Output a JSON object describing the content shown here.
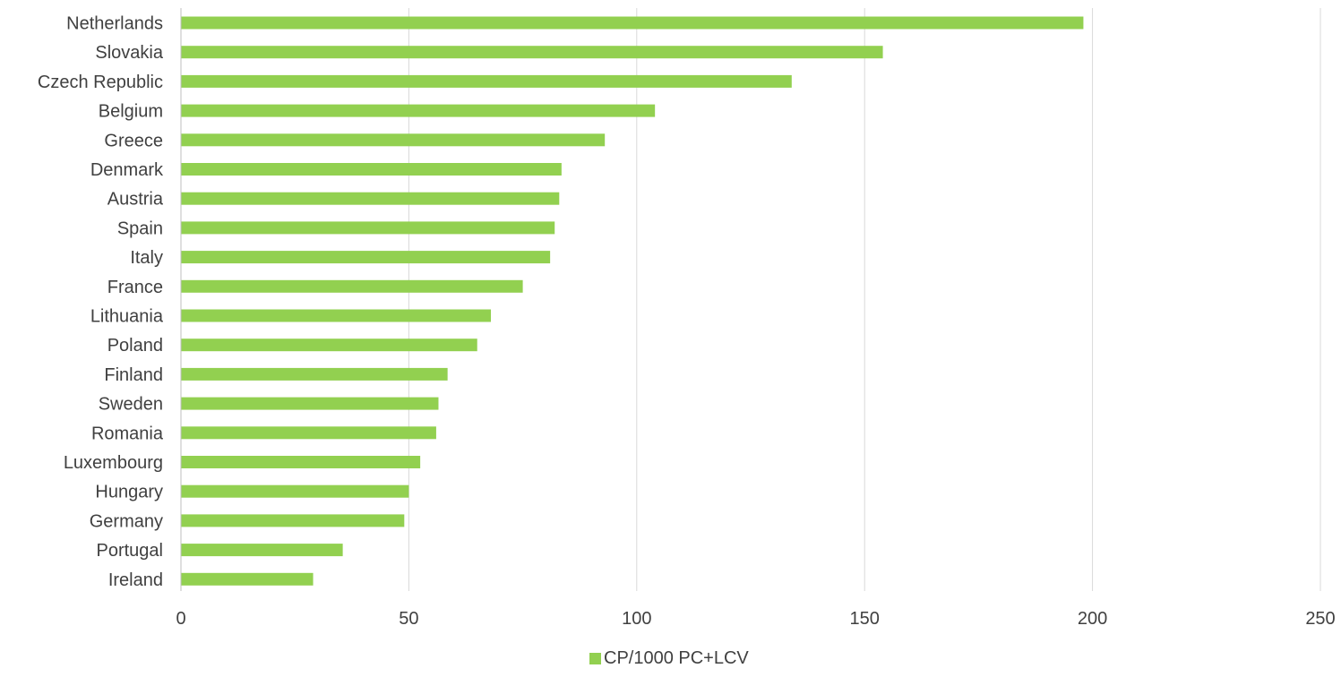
{
  "chart_data": {
    "type": "bar",
    "orientation": "horizontal",
    "title": "",
    "xlabel": "",
    "ylabel": "",
    "categories": [
      "Netherlands",
      "Slovakia",
      "Czech Republic",
      "Belgium",
      "Greece",
      "Denmark",
      "Austria",
      "Spain",
      "Italy",
      "France",
      "Lithuania",
      "Poland",
      "Finland",
      "Sweden",
      "Romania",
      "Luxembourg",
      "Hungary",
      "Germany",
      "Portugal",
      "Ireland"
    ],
    "series": [
      {
        "name": "CP/1000 PC+LCV",
        "color": "#92d050",
        "values": [
          198,
          154,
          134,
          104,
          93,
          83.5,
          83,
          82,
          81,
          75,
          68,
          65,
          58.5,
          56.5,
          56,
          52.5,
          50,
          49,
          35.5,
          29
        ]
      }
    ],
    "xlim": [
      0,
      250
    ],
    "xticks": [
      "0",
      "50",
      "100",
      "150",
      "200",
      "250"
    ],
    "grid": "vertical",
    "legend_position": "bottom-center",
    "colors": {
      "gridline": "#d9d9d9",
      "axis": "#bfbfbf",
      "text": "#404040"
    }
  }
}
